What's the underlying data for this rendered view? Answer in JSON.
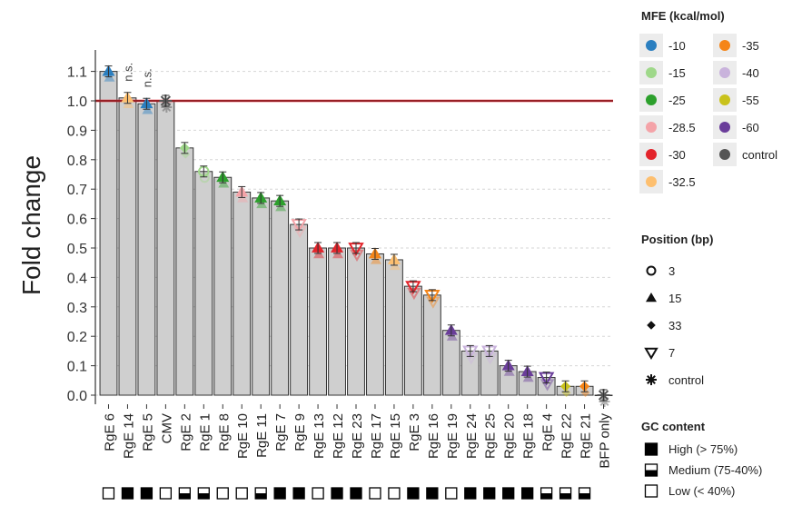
{
  "chart_data": {
    "type": "bar",
    "ylabel": "Fold change",
    "ylim": [
      0,
      1.15
    ],
    "yticks": [
      "0.0",
      "0.1",
      "0.2",
      "0.3",
      "0.4",
      "0.5",
      "0.6",
      "0.7",
      "0.8",
      "0.9",
      "1.0",
      "1.1"
    ],
    "reference_line": 1.0,
    "annotations": [
      {
        "category": "RgE 14",
        "text": "n.s."
      },
      {
        "category": "RgE 5",
        "text": "n.s."
      }
    ],
    "categories": [
      "RgE 6",
      "RgE 14",
      "RgE 5",
      "CMV",
      "RgE 2",
      "RgE 1",
      "RgE 8",
      "RgE 10",
      "RgE 11",
      "RgE 7",
      "RgE 9",
      "RgE 13",
      "RgE 12",
      "RgE 23",
      "RgE 17",
      "RgE 15",
      "RgE 3",
      "RgE 16",
      "RgE 19",
      "RgE 24",
      "RgE 25",
      "RgE 20",
      "RgE 18",
      "RgE 4",
      "RgE 22",
      "RgE 21",
      "BFP only"
    ],
    "values": [
      1.1,
      1.01,
      0.99,
      1.0,
      0.84,
      0.76,
      0.74,
      0.69,
      0.67,
      0.66,
      0.58,
      0.5,
      0.5,
      0.5,
      0.48,
      0.46,
      0.37,
      0.34,
      0.22,
      0.15,
      0.15,
      0.1,
      0.08,
      0.06,
      0.03,
      0.03,
      0.0
    ],
    "mfe": [
      "-10",
      "-32.5",
      "-10",
      "control",
      "-15",
      "-15",
      "-25",
      "-28.5",
      "-25",
      "-25",
      "-28.5",
      "-30",
      "-30",
      "-30",
      "-35",
      "-32.5",
      "-30",
      "-35",
      "-60",
      "-40",
      "-40",
      "-60",
      "-60",
      "-60",
      "-55",
      "-35",
      "control"
    ],
    "position": [
      "15",
      "15",
      "15",
      "control",
      "33",
      "3",
      "15",
      "15",
      "15",
      "15",
      "7",
      "15",
      "15",
      "7",
      "15",
      "15",
      "7",
      "7",
      "15",
      "7",
      "7",
      "15",
      "15",
      "7",
      "33",
      "33",
      "control"
    ],
    "gc_content": [
      "low",
      "high",
      "high",
      "low",
      "medium",
      "medium",
      "low",
      "low",
      "medium",
      "high",
      "high",
      "low",
      "high",
      "high",
      "low",
      "low",
      "high",
      "high",
      "low",
      "high",
      "high",
      "high",
      "high",
      "medium",
      "medium",
      "medium",
      "none"
    ],
    "legend": {
      "mfe_title": "MFE (kcal/mol)",
      "mfe_items": [
        {
          "label": "-10",
          "color": "#2b7fc0"
        },
        {
          "label": "-15",
          "color": "#9fd88a"
        },
        {
          "label": "-25",
          "color": "#2ca02c"
        },
        {
          "label": "-28.5",
          "color": "#f4a3a8"
        },
        {
          "label": "-30",
          "color": "#e3242b"
        },
        {
          "label": "-32.5",
          "color": "#fdbf6f"
        },
        {
          "label": "-35",
          "color": "#f58518"
        },
        {
          "label": "-40",
          "color": "#c9b3dc"
        },
        {
          "label": "-55",
          "color": "#c9c21b"
        },
        {
          "label": "-60",
          "color": "#6a3d9a"
        },
        {
          "label": "control",
          "color": "#555555"
        }
      ],
      "position_title": "Position (bp)",
      "position_items": [
        {
          "label": "3",
          "shape": "circle"
        },
        {
          "label": "15",
          "shape": "triangle-up"
        },
        {
          "label": "33",
          "shape": "diamond"
        },
        {
          "label": "7",
          "shape": "triangle-down"
        },
        {
          "label": "control",
          "shape": "asterisk"
        }
      ],
      "gc_title": "GC content",
      "gc_items": [
        {
          "label": "High (> 75%)",
          "fill": "high"
        },
        {
          "label": "Medium (75-40%)",
          "fill": "medium"
        },
        {
          "label": "Low (< 40%)",
          "fill": "low"
        }
      ]
    }
  }
}
